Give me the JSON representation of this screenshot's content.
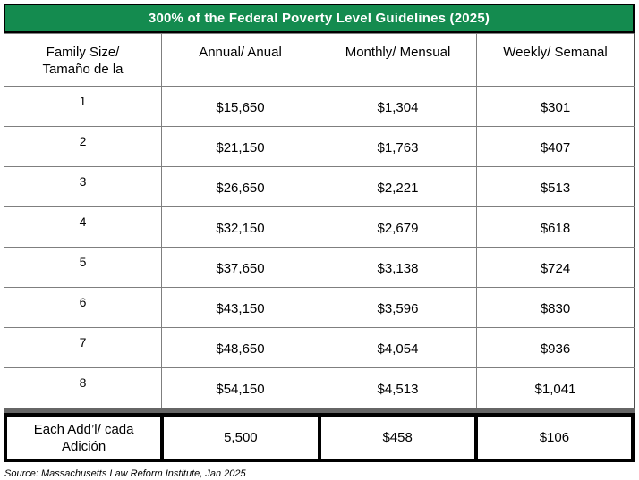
{
  "title": "300% of the Federal Poverty Level Guidelines (2025)",
  "colors": {
    "header_green": "#148B4F",
    "grid_gray": "#7F7F7F",
    "divider_gray": "#666666",
    "footer_border": "#000000"
  },
  "table": {
    "column_headers": [
      {
        "line1": "Family Size/",
        "line2": "Tamaño de la"
      },
      {
        "label": "Annual/ Anual"
      },
      {
        "label": "Monthly/ Mensual"
      },
      {
        "label": "Weekly/ Semanal"
      }
    ],
    "rows": [
      {
        "family_size": "1",
        "annual": "$15,650",
        "monthly": "$1,304",
        "weekly": "$301"
      },
      {
        "family_size": "2",
        "annual": "$21,150",
        "monthly": "$1,763",
        "weekly": "$407"
      },
      {
        "family_size": "3",
        "annual": "$26,650",
        "monthly": "$2,221",
        "weekly": "$513"
      },
      {
        "family_size": "4",
        "annual": "$32,150",
        "monthly": "$2,679",
        "weekly": "$618"
      },
      {
        "family_size": "5",
        "annual": "$37,650",
        "monthly": "$3,138",
        "weekly": "$724"
      },
      {
        "family_size": "6",
        "annual": "$43,150",
        "monthly": "$3,596",
        "weekly": "$830"
      },
      {
        "family_size": "7",
        "annual": "$48,650",
        "monthly": "$4,054",
        "weekly": "$936"
      },
      {
        "family_size": "8",
        "annual": "$54,150",
        "monthly": "$4,513",
        "weekly": "$1,041"
      }
    ],
    "each_additional": {
      "label_line1": "Each Add’l/ cada",
      "label_line2": "Adición",
      "annual": "5,500",
      "monthly": "$458",
      "weekly": "$106"
    }
  },
  "source": "Source: Massachusetts Law Reform Institute, Jan 2025"
}
